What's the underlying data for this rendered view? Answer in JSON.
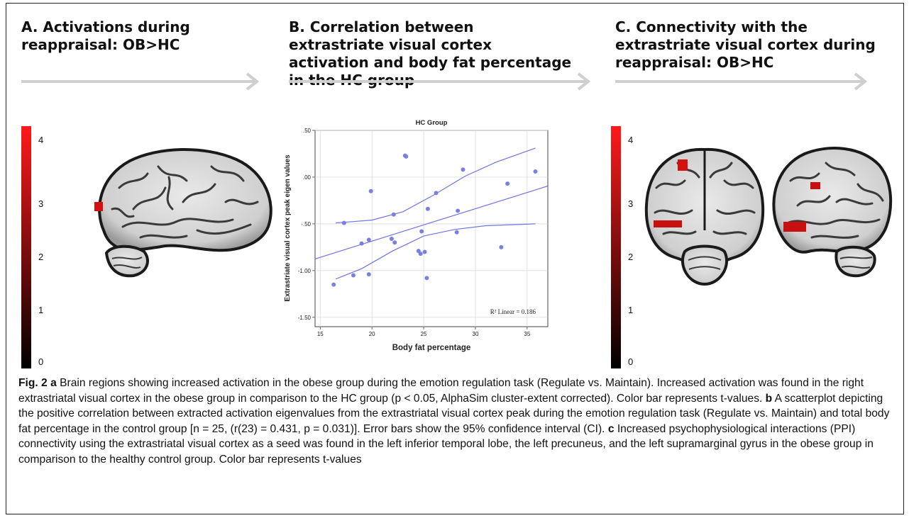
{
  "panels": {
    "a": {
      "title": "A. Activations during reappraisal: OB>HC"
    },
    "b": {
      "title": "B. Correlation between extrastriate visual cortex activation and body fat percentage in the HC group"
    },
    "c": {
      "title": "C. Connectivity with the extrastriate visual cortex during reappraisal: OB>HC"
    }
  },
  "colorbar": {
    "ticks": [
      "4",
      "3",
      "2",
      "1",
      "0"
    ],
    "colors": {
      "top": "#ff1a1a",
      "bottom": "#000000"
    }
  },
  "arrow_color": "#cfcfcf",
  "chart_data": {
    "type": "scatter",
    "title": "HC Group",
    "xlabel": "Body fat percentage",
    "ylabel": "Extrastriate visual cortex peak eigen values",
    "xlim": [
      14.5,
      37
    ],
    "ylim": [
      -1.6,
      0.5
    ],
    "x_ticks": [
      15,
      20,
      25,
      30,
      35
    ],
    "y_ticks": [
      0.5,
      0.0,
      -0.5,
      -1.0,
      -1.5
    ],
    "y_tick_labels": [
      ".50",
      ".00",
      "-.50",
      "-1.00",
      "-1.50"
    ],
    "grid": true,
    "point_color": "#7b80e0",
    "line_color": "#6f74e6",
    "annotation": "R² Linear = 0.186",
    "points": [
      [
        16.3,
        -1.15
      ],
      [
        17.3,
        -0.49
      ],
      [
        18.2,
        -1.05
      ],
      [
        19.0,
        -0.71
      ],
      [
        19.7,
        -0.67
      ],
      [
        19.7,
        -1.04
      ],
      [
        19.9,
        -0.15
      ],
      [
        21.9,
        -0.66
      ],
      [
        22.1,
        -0.4
      ],
      [
        22.2,
        -0.7
      ],
      [
        23.2,
        0.23
      ],
      [
        23.3,
        0.22
      ],
      [
        24.5,
        -0.79
      ],
      [
        24.7,
        -0.82
      ],
      [
        24.8,
        -0.58
      ],
      [
        25.1,
        -0.8
      ],
      [
        25.3,
        -1.08
      ],
      [
        25.4,
        -0.34
      ],
      [
        26.2,
        -0.17
      ],
      [
        28.2,
        -0.59
      ],
      [
        28.3,
        -0.36
      ],
      [
        28.8,
        0.08
      ],
      [
        32.5,
        -0.75
      ],
      [
        33.1,
        -0.07
      ],
      [
        35.8,
        0.06
      ]
    ],
    "fit_line": [
      [
        14.5,
        -0.875
      ],
      [
        37,
        -0.095
      ]
    ],
    "ci_upper": [
      [
        16.5,
        -0.49
      ],
      [
        20,
        -0.46
      ],
      [
        23,
        -0.37
      ],
      [
        26,
        -0.19
      ],
      [
        29,
        0.01
      ],
      [
        32,
        0.16
      ],
      [
        35.8,
        0.31
      ]
    ],
    "ci_lower": [
      [
        16.5,
        -1.09
      ],
      [
        19,
        -0.98
      ],
      [
        22,
        -0.79
      ],
      [
        25,
        -0.63
      ],
      [
        28,
        -0.56
      ],
      [
        31,
        -0.52
      ],
      [
        35.8,
        -0.5
      ]
    ]
  },
  "caption": {
    "fig_label": "Fig. 2",
    "a_label": "a",
    "a_text": " Brain regions showing increased activation in the obese group during the emotion regulation task (Regulate vs. Maintain). Increased activation was found in the right extrastriatal visual cortex in the obese group in comparison to the HC group (p < 0.05, AlphaSim cluster-extent corrected). Color bar represents t-values. ",
    "b_label": "b",
    "b_text": " A scatterplot depicting the positive correlation between extracted activation eigenvalues from the extrastriatal visual cortex peak during the emotion regulation task (Regulate vs. Maintain) and total body fat percentage in the control group [n = 25, (r(23) = 0.431, p = 0.031)]. Error bars show the 95% confidence interval (CI). ",
    "c_label": "c",
    "c_text": " Increased psychophysiological interactions (PPI) connectivity using the extrastriatal visual cortex as a seed was found in the left inferior temporal lobe, the left precuneus, and the left supramarginal gyrus in the obese group in comparison to the healthy control group. Color bar represents t-values"
  }
}
